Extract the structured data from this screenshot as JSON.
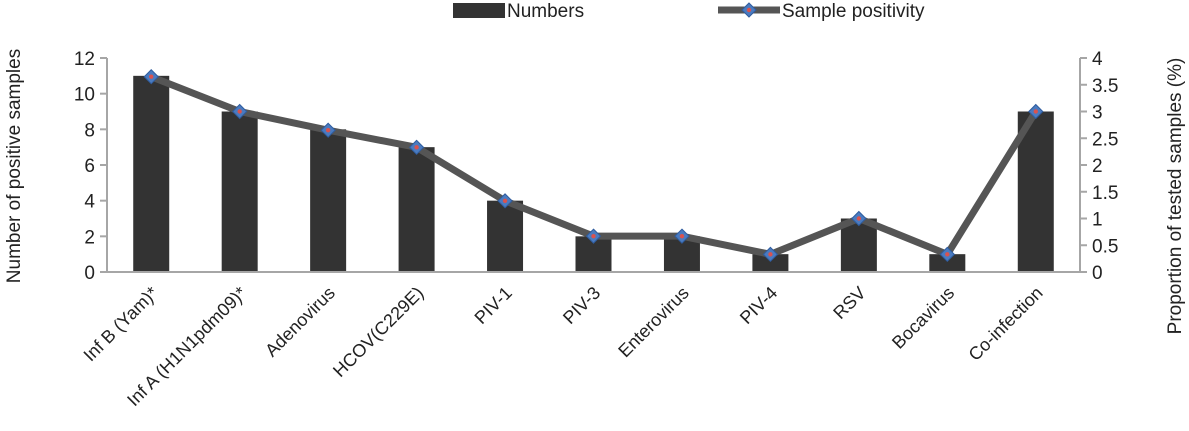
{
  "chart_data": {
    "type": "bar",
    "title": "",
    "categories": [
      "Inf B (Yam)*",
      "Inf A (H1N1pdm09)*",
      "Adenovirus",
      "HCOV(C229E)",
      "PIV-1",
      "PIV-3",
      "Enterovirus",
      "PIV-4",
      "RSV",
      "Bocavirus",
      "Co-infection"
    ],
    "series": [
      {
        "name": "Numbers",
        "type": "bar",
        "axis": "left",
        "color": "#333333",
        "values": [
          11,
          9,
          8,
          7,
          4,
          2,
          2,
          1,
          3,
          1,
          9
        ]
      },
      {
        "name": "Sample positivity",
        "type": "line",
        "axis": "right",
        "color": "#555555",
        "marker_color": "#4a7bc0",
        "marker_center_color": "#d9534f",
        "values": [
          3.65,
          3.0,
          2.65,
          2.33,
          1.33,
          0.67,
          0.67,
          0.33,
          1.0,
          0.33,
          3.0
        ]
      }
    ],
    "ylabel": "Number of positive samples",
    "y2label": "Proportion of tested samples (%)",
    "ylim": [
      0,
      12
    ],
    "y2lim": [
      0,
      4
    ],
    "yticks": [
      "0",
      "2",
      "4",
      "6",
      "8",
      "10",
      "12"
    ],
    "y2ticks": [
      "0",
      "0.5",
      "1",
      "1.5",
      "2",
      "2.5",
      "3",
      "3.5",
      "4"
    ],
    "legend_position": "top",
    "grid": false
  }
}
